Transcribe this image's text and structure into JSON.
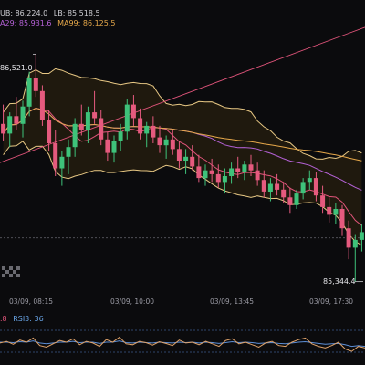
{
  "legend": {
    "bb_ub_label": "UB: 86,224.0",
    "bb_lb_label": "LB: 85,518.5",
    "ma29_label": "A29: 85,931.6",
    "ma99_label": "MA99: 86,125.5",
    "rsi_prefix": ".8",
    "rsi_label": "RSI3: 36"
  },
  "price_marks": {
    "high": "86,521.0",
    "low": "85,344.4"
  },
  "colors": {
    "up": "#3ec27a",
    "down": "#e55a7e",
    "bb": "#e8c884",
    "ma_pink": "#e0547a",
    "ma_purple": "#b461d6",
    "ma_orange": "#e6a84a",
    "rsi_orange": "#e0a36a",
    "rsi_blue": "#5d8fd6"
  },
  "chart_data": {
    "type": "candlestick",
    "x_ticks": [
      "03/09, 08:15",
      "03/09, 10:00",
      "03/09, 13:45",
      "03/09, 17:30"
    ],
    "y_range": [
      85300,
      86650
    ],
    "candles": [
      [
        86160,
        86260,
        86070,
        86110
      ],
      [
        86110,
        86220,
        86040,
        86200
      ],
      [
        86200,
        86300,
        86130,
        86160
      ],
      [
        86160,
        86280,
        86090,
        86250
      ],
      [
        86250,
        86430,
        86200,
        86400
      ],
      [
        86400,
        86521,
        86300,
        86330
      ],
      [
        86330,
        86360,
        86150,
        86180
      ],
      [
        86180,
        86230,
        86020,
        86060
      ],
      [
        86060,
        86130,
        85890,
        85930
      ],
      [
        85930,
        86020,
        85840,
        85990
      ],
      [
        85990,
        86080,
        85900,
        86040
      ],
      [
        86040,
        86190,
        85990,
        86160
      ],
      [
        86160,
        86260,
        86100,
        86130
      ],
      [
        86130,
        86250,
        86060,
        86220
      ],
      [
        86220,
        86330,
        86160,
        86190
      ],
      [
        86190,
        86230,
        86050,
        86080
      ],
      [
        86080,
        86120,
        85970,
        86010
      ],
      [
        86010,
        86100,
        85960,
        86070
      ],
      [
        86070,
        86160,
        86020,
        86120
      ],
      [
        86120,
        86290,
        86080,
        86260
      ],
      [
        86260,
        86310,
        86150,
        86190
      ],
      [
        86190,
        86240,
        86080,
        86110
      ],
      [
        86110,
        86170,
        86040,
        86150
      ],
      [
        86150,
        86200,
        86060,
        86090
      ],
      [
        86090,
        86150,
        86010,
        86050
      ],
      [
        86050,
        86100,
        85980,
        86080
      ],
      [
        86080,
        86130,
        86000,
        86030
      ],
      [
        86030,
        86070,
        85930,
        85970
      ],
      [
        85970,
        86030,
        85900,
        85990
      ],
      [
        85990,
        86050,
        85920,
        85940
      ],
      [
        85940,
        86000,
        85860,
        85880
      ],
      [
        85880,
        85950,
        85840,
        85920
      ],
      [
        85920,
        85980,
        85860,
        85900
      ],
      [
        85900,
        85950,
        85830,
        85860
      ],
      [
        85860,
        85930,
        85800,
        85890
      ],
      [
        85890,
        85960,
        85850,
        85930
      ],
      [
        85930,
        85990,
        85880,
        85910
      ],
      [
        85910,
        85970,
        85870,
        85950
      ],
      [
        85950,
        86000,
        85890,
        85920
      ],
      [
        85920,
        85960,
        85840,
        85870
      ],
      [
        85870,
        85920,
        85780,
        85810
      ],
      [
        85810,
        85880,
        85760,
        85850
      ],
      [
        85850,
        85900,
        85790,
        85820
      ],
      [
        85820,
        85860,
        85750,
        85780
      ],
      [
        85780,
        85830,
        85700,
        85740
      ],
      [
        85740,
        85820,
        85720,
        85800
      ],
      [
        85800,
        85880,
        85770,
        85860
      ],
      [
        85860,
        85920,
        85820,
        85880
      ],
      [
        85880,
        85910,
        85760,
        85790
      ],
      [
        85790,
        85840,
        85700,
        85730
      ],
      [
        85730,
        85780,
        85650,
        85690
      ],
      [
        85690,
        85750,
        85640,
        85720
      ],
      [
        85720,
        85740,
        85580,
        85620
      ],
      [
        85620,
        85660,
        85460,
        85520
      ],
      [
        85520,
        85590,
        85344,
        85560
      ],
      [
        85560,
        85640,
        85500,
        85600
      ]
    ],
    "rsi_range": [
      0,
      100
    ],
    "rsi_line": [
      48,
      52,
      45,
      55,
      50,
      60,
      42,
      38,
      46,
      54,
      50,
      58,
      44,
      52,
      48,
      40,
      56,
      50,
      62,
      46,
      44,
      52,
      49,
      43,
      51,
      47,
      42,
      55,
      48,
      50,
      44,
      52,
      46,
      40,
      54,
      58,
      46,
      50,
      44,
      38,
      48,
      52,
      42,
      40,
      50,
      56,
      60,
      46,
      40,
      36,
      42,
      50,
      34,
      28,
      40,
      36
    ],
    "rsi_signal": [
      50,
      50,
      49,
      51,
      50,
      53,
      48,
      46,
      48,
      50,
      50,
      52,
      49,
      50,
      50,
      47,
      50,
      50,
      53,
      49,
      48,
      50,
      49,
      48,
      50,
      49,
      48,
      50,
      49,
      50,
      48,
      50,
      49,
      47,
      49,
      51,
      49,
      50,
      49,
      47,
      48,
      49,
      47,
      46,
      48,
      50,
      51,
      49,
      47,
      45,
      46,
      47,
      44,
      40,
      42,
      40
    ]
  }
}
